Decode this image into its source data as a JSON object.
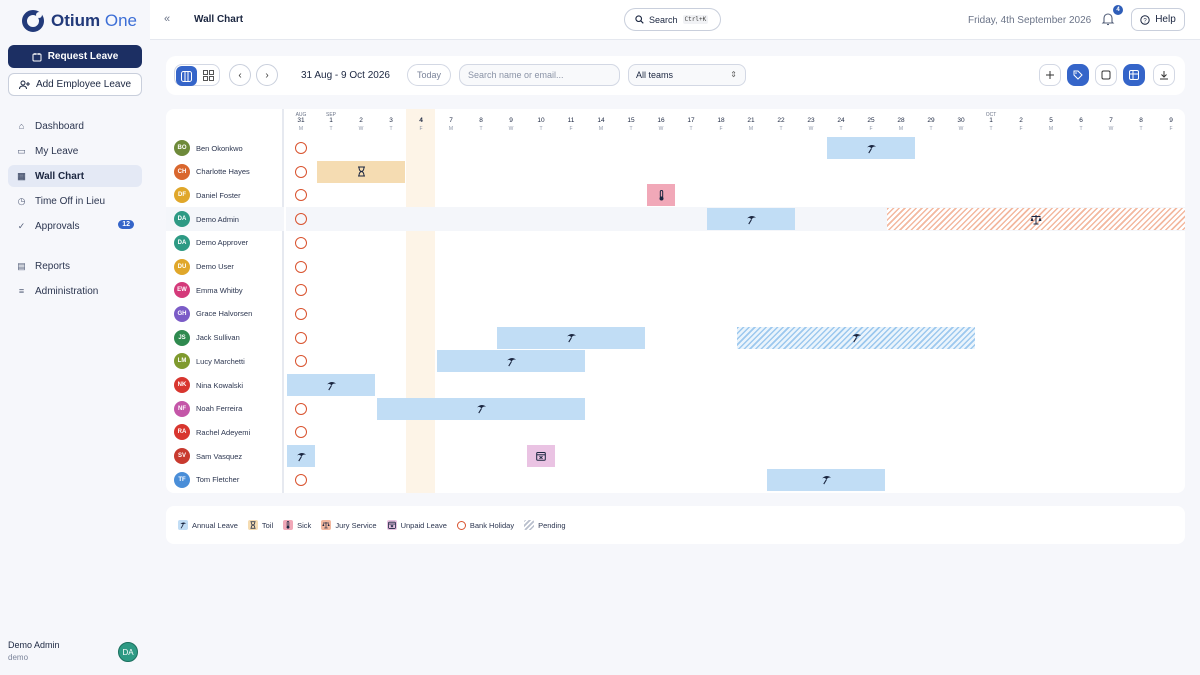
{
  "app": {
    "logo_text": "Otium",
    "logo_suffix": "One"
  },
  "sidebar": {
    "request_label": "Request Leave",
    "add_employee_label": "Add Employee Leave",
    "nav": [
      {
        "label": "Dashboard",
        "icon": "home-icon"
      },
      {
        "label": "My Leave",
        "icon": "calendar-icon"
      },
      {
        "label": "Wall Chart",
        "icon": "calendar-grid-icon",
        "active": true
      },
      {
        "label": "Time Off in Lieu",
        "icon": "clock-icon"
      },
      {
        "label": "Approvals",
        "icon": "check-circle-icon",
        "badge": "12"
      }
    ],
    "nav2": [
      {
        "label": "Reports",
        "icon": "document-icon"
      },
      {
        "label": "Administration",
        "icon": "sliders-icon"
      }
    ],
    "user": {
      "name": "Demo Admin",
      "sub": "demo",
      "initials": "DA"
    }
  },
  "topbar": {
    "title": "Wall Chart",
    "search_label": "Search",
    "search_kbd": "Ctrl+K",
    "date": "Friday, 4th September 2026",
    "notif_count": "4",
    "help_label": "Help"
  },
  "toolbar": {
    "range": "31 Aug - 9 Oct 2026",
    "today_label": "Today",
    "search_placeholder": "Search name or email...",
    "team_value": "All teams"
  },
  "colors": {
    "annual": "#c1ddf5",
    "toil": "#f5dcb2",
    "sick": "#f1a8b8",
    "unpaid": "#eac3e3",
    "jury": "#f3b89f",
    "pending": "#9cc8ee",
    "bank_holiday": "#d9532f",
    "primary": "#1c2f63",
    "accent": "#3565c9"
  },
  "days": [
    {
      "n": "31",
      "w": "M",
      "m": "AUG"
    },
    {
      "n": "1",
      "w": "T",
      "m": "SEP"
    },
    {
      "n": "2",
      "w": "W"
    },
    {
      "n": "3",
      "w": "T"
    },
    {
      "n": "4",
      "w": "F",
      "today": true
    },
    {
      "n": "7",
      "w": "M"
    },
    {
      "n": "8",
      "w": "T"
    },
    {
      "n": "9",
      "w": "W"
    },
    {
      "n": "10",
      "w": "T"
    },
    {
      "n": "11",
      "w": "F"
    },
    {
      "n": "14",
      "w": "M"
    },
    {
      "n": "15",
      "w": "T"
    },
    {
      "n": "16",
      "w": "W"
    },
    {
      "n": "17",
      "w": "T"
    },
    {
      "n": "18",
      "w": "F"
    },
    {
      "n": "21",
      "w": "M"
    },
    {
      "n": "22",
      "w": "T"
    },
    {
      "n": "23",
      "w": "W"
    },
    {
      "n": "24",
      "w": "T"
    },
    {
      "n": "25",
      "w": "F"
    },
    {
      "n": "28",
      "w": "M"
    },
    {
      "n": "29",
      "w": "T"
    },
    {
      "n": "30",
      "w": "W"
    },
    {
      "n": "1",
      "w": "T",
      "m": "OCT"
    },
    {
      "n": "2",
      "w": "F"
    },
    {
      "n": "5",
      "w": "M"
    },
    {
      "n": "6",
      "w": "T"
    },
    {
      "n": "7",
      "w": "W"
    },
    {
      "n": "8",
      "w": "T"
    },
    {
      "n": "9",
      "w": "F"
    }
  ],
  "employees": [
    {
      "name": "Ben Okonkwo",
      "initials": "BO",
      "color": "#6e8a3a"
    },
    {
      "name": "Charlotte Hayes",
      "initials": "CH",
      "color": "#d9672e"
    },
    {
      "name": "Daniel Foster",
      "initials": "DF",
      "color": "#e0a72a"
    },
    {
      "name": "Demo Admin",
      "initials": "DA",
      "color": "#2e9a84",
      "highlight": true
    },
    {
      "name": "Demo Approver",
      "initials": "DA",
      "color": "#2e9a84"
    },
    {
      "name": "Demo User",
      "initials": "DU",
      "color": "#e0a72a"
    },
    {
      "name": "Emma Whitby",
      "initials": "EW",
      "color": "#d43a7a"
    },
    {
      "name": "Grace Halvorsen",
      "initials": "GH",
      "color": "#7b5cc7"
    },
    {
      "name": "Jack Sullivan",
      "initials": "JS",
      "color": "#2f8a4f"
    },
    {
      "name": "Lucy Marchetti",
      "initials": "LM",
      "color": "#7f9a2e"
    },
    {
      "name": "Nina Kowalski",
      "initials": "NK",
      "color": "#d8362f"
    },
    {
      "name": "Noah Ferreira",
      "initials": "NF",
      "color": "#c456a8"
    },
    {
      "name": "Rachel Adeyemi",
      "initials": "RA",
      "color": "#d8362f"
    },
    {
      "name": "Sam Vasquez",
      "initials": "SV",
      "color": "#c83a2f"
    },
    {
      "name": "Tom Fletcher",
      "initials": "TF",
      "color": "#4a8ed8"
    }
  ],
  "absences": [
    {
      "emp": 0,
      "start": 18,
      "end": 20,
      "type": "annual"
    },
    {
      "emp": 1,
      "start": 1,
      "end": 3,
      "type": "toil"
    },
    {
      "emp": 2,
      "start": 12,
      "end": 12,
      "type": "sick"
    },
    {
      "emp": 3,
      "start": 14,
      "end": 16,
      "type": "annual"
    },
    {
      "emp": 3,
      "start": 20,
      "end": 29,
      "type": "jury"
    },
    {
      "emp": 8,
      "start": 7,
      "end": 11,
      "type": "annual"
    },
    {
      "emp": 8,
      "start": 15,
      "end": 22,
      "type": "pending"
    },
    {
      "emp": 9,
      "start": 5,
      "end": 9,
      "type": "annual"
    },
    {
      "emp": 10,
      "start": 0,
      "end": 2,
      "type": "annual"
    },
    {
      "emp": 11,
      "start": 3,
      "end": 9,
      "type": "annual"
    },
    {
      "emp": 13,
      "start": 0,
      "end": 0,
      "type": "annual"
    },
    {
      "emp": 13,
      "start": 8,
      "end": 8,
      "type": "unpaid"
    },
    {
      "emp": 14,
      "start": 16,
      "end": 19,
      "type": "annual"
    }
  ],
  "legend": [
    {
      "label": "Annual Leave",
      "type": "annual"
    },
    {
      "label": "Toil",
      "type": "toil"
    },
    {
      "label": "Sick",
      "type": "sick"
    },
    {
      "label": "Jury Service",
      "type": "jury"
    },
    {
      "label": "Unpaid Leave",
      "type": "unpaid"
    },
    {
      "label": "Bank Holiday",
      "type": "bank"
    },
    {
      "label": "Pending",
      "type": "pending"
    }
  ]
}
